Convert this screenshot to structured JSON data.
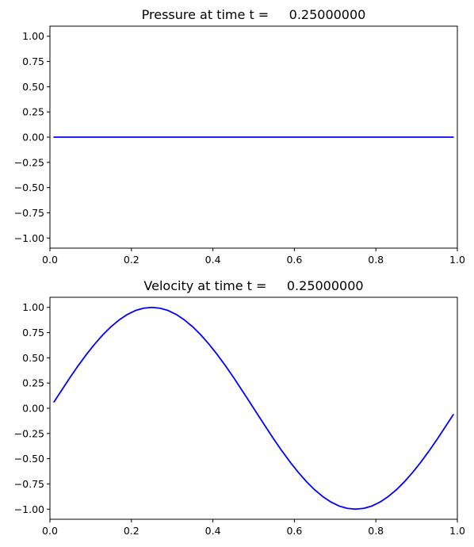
{
  "chart_data": [
    {
      "type": "line",
      "title": "Pressure at time t =     0.25000000",
      "xlabel": "",
      "ylabel": "",
      "xlim": [
        0.0,
        1.0
      ],
      "ylim": [
        -1.1,
        1.1
      ],
      "xticks": [
        "0.0",
        "0.2",
        "0.4",
        "0.6",
        "0.8",
        "1.0"
      ],
      "yticks": [
        "1.00",
        "0.75",
        "0.50",
        "0.25",
        "0.00",
        "−0.25",
        "−0.50",
        "−0.75",
        "−1.00"
      ],
      "grid": false,
      "color": "#0000ff",
      "series": [
        {
          "x": [
            0.01,
            0.99
          ],
          "y": [
            0.0,
            0.0
          ]
        }
      ]
    },
    {
      "type": "line",
      "title": "Velocity at time t =     0.25000000",
      "xlabel": "",
      "ylabel": "",
      "xlim": [
        0.0,
        1.0
      ],
      "ylim": [
        -1.1,
        1.1
      ],
      "xticks": [
        "0.0",
        "0.2",
        "0.4",
        "0.6",
        "0.8",
        "1.0"
      ],
      "yticks": [
        "1.00",
        "0.75",
        "0.50",
        "0.25",
        "0.00",
        "−0.25",
        "−0.50",
        "−0.75",
        "−1.00"
      ],
      "grid": false,
      "color": "#0000ff",
      "series": [
        {
          "x": [
            0.01,
            0.03,
            0.05,
            0.07,
            0.09,
            0.11,
            0.13,
            0.15,
            0.17,
            0.19,
            0.21,
            0.23,
            0.25,
            0.27,
            0.29,
            0.31,
            0.33,
            0.35,
            0.37,
            0.39,
            0.41,
            0.43,
            0.45,
            0.47,
            0.49,
            0.51,
            0.53,
            0.55,
            0.57,
            0.59,
            0.61,
            0.63,
            0.65,
            0.67,
            0.69,
            0.71,
            0.73,
            0.75,
            0.77,
            0.79,
            0.81,
            0.83,
            0.85,
            0.87,
            0.89,
            0.91,
            0.93,
            0.95,
            0.97,
            0.99
          ],
          "y": [
            0.063,
            0.187,
            0.309,
            0.426,
            0.536,
            0.637,
            0.729,
            0.809,
            0.876,
            0.93,
            0.969,
            0.992,
            1.0,
            0.992,
            0.969,
            0.93,
            0.876,
            0.809,
            0.729,
            0.637,
            0.536,
            0.426,
            0.309,
            0.187,
            0.063,
            -0.063,
            -0.187,
            -0.309,
            -0.426,
            -0.536,
            -0.637,
            -0.729,
            -0.809,
            -0.876,
            -0.93,
            -0.969,
            -0.992,
            -1.0,
            -0.992,
            -0.969,
            -0.93,
            -0.876,
            -0.809,
            -0.729,
            -0.637,
            -0.536,
            -0.426,
            -0.309,
            -0.187,
            -0.063
          ]
        }
      ]
    }
  ]
}
